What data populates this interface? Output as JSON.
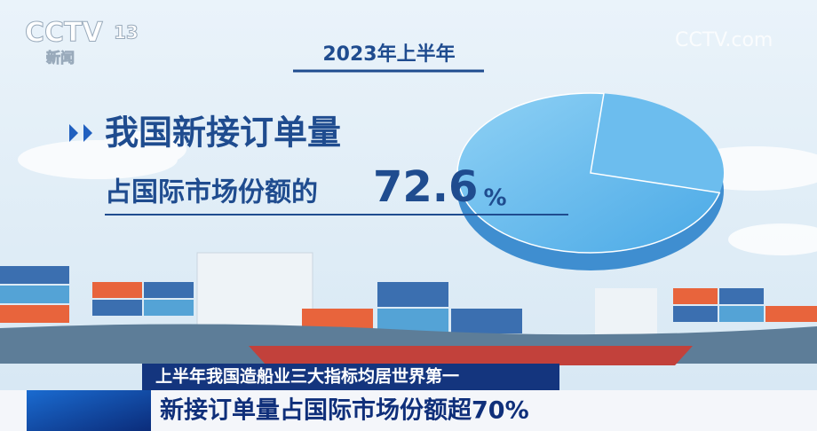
{
  "logo": {
    "brand": "CCTV",
    "channel": "13",
    "name": "新闻"
  },
  "watermark": "CCTV.com",
  "period": "2023年上半年",
  "headline": {
    "line1": "我国新接订单量",
    "line2": "占国际市场份额的",
    "share_value": 72.6,
    "share_unit": "%"
  },
  "lower_third": {
    "top": "上半年我国造船业三大指标均居世界第一",
    "main": "新接订单量占国际市场份额超70%"
  }
}
